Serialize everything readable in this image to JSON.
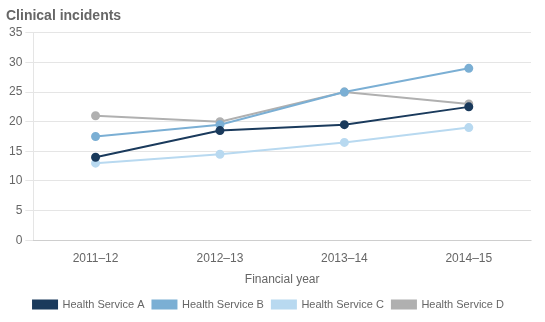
{
  "chart_data": {
    "type": "line",
    "title": "Clinical incidents",
    "x_label": "Financial year",
    "categories": [
      "2011–12",
      "2012–13",
      "2013–14",
      "2014–15"
    ],
    "series": [
      {
        "name": "Health Service A",
        "color": "#1a3a5c",
        "values": [
          14,
          18.5,
          19.5,
          22.5
        ],
        "marker": "circle"
      },
      {
        "name": "Health Service B",
        "color": "#7bafd4",
        "values": [
          17.5,
          19.5,
          25,
          29
        ],
        "marker": "circle"
      },
      {
        "name": "Health Service C",
        "color": "#b8d9f0",
        "values": [
          13,
          14.5,
          16.5,
          19
        ],
        "marker": "circle"
      },
      {
        "name": "Health Service D",
        "color": "#b0b0b0",
        "values": [
          21,
          20,
          25,
          23
        ],
        "marker": "circle"
      }
    ],
    "ylim": [
      0,
      35
    ],
    "yticks": [
      0,
      5,
      10,
      15,
      20,
      25,
      30,
      35
    ],
    "grid": true,
    "legend": "bottom"
  }
}
